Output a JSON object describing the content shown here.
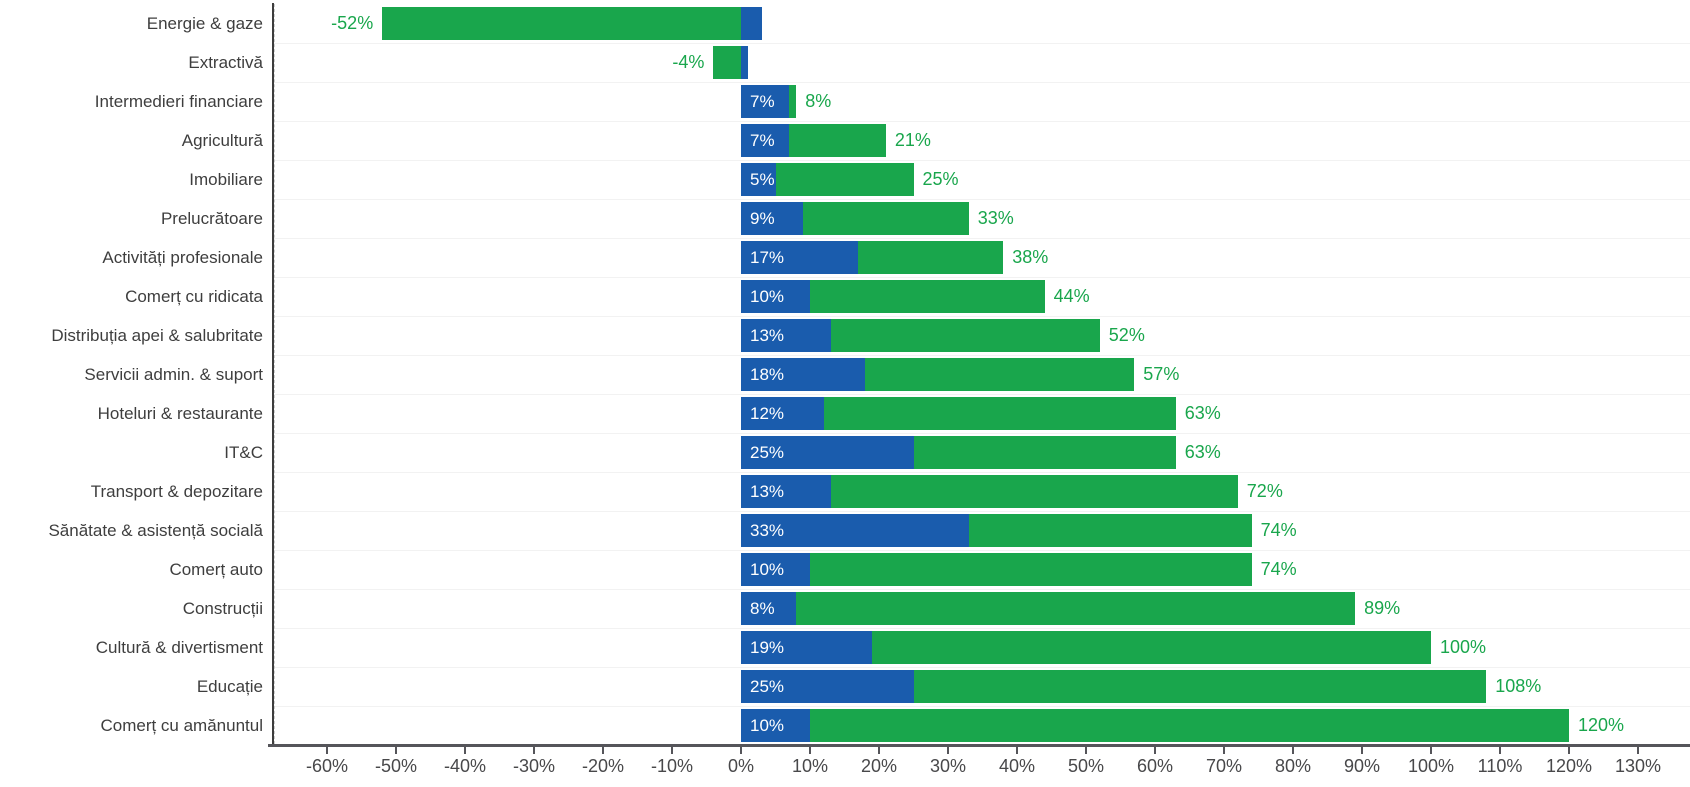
{
  "chart_data": {
    "type": "bar",
    "orientation": "horizontal",
    "stacked": true,
    "title": "",
    "legend": "none",
    "grid": "light horizontal row separators, dashed vertical zero line",
    "categories": [
      "Energie & gaze",
      "Extractivă",
      "Intermedieri financiare",
      "Agricultură",
      "Imobiliare",
      "Prelucrătoare",
      "Activități profesionale",
      "Comerț cu ridicata",
      "Distribuția apei & salubritate",
      "Servicii admin. & suport",
      "Hoteluri & restaurante",
      "IT&C",
      "Transport & depozitare",
      "Sănătate & asistență socială",
      "Comerț auto",
      "Construcții",
      "Cultură & divertisment",
      "Educație",
      "Comerț cu amănuntul"
    ],
    "series": [
      {
        "name": "blue-segment",
        "color": "#1A5CAD",
        "values": [
          3,
          1,
          7,
          7,
          5,
          9,
          17,
          10,
          13,
          18,
          12,
          25,
          13,
          33,
          10,
          8,
          19,
          25,
          10
        ],
        "labels": [
          "",
          "",
          "7%",
          "7%",
          "5%",
          "9%",
          "17%",
          "10%",
          "13%",
          "18%",
          "12%",
          "25%",
          "13%",
          "33%",
          "10%",
          "8%",
          "19%",
          "25%",
          "10%"
        ]
      },
      {
        "name": "green-segment",
        "color": "#19A64C",
        "end_totals": [
          -52,
          -4,
          8,
          21,
          25,
          33,
          38,
          44,
          52,
          57,
          63,
          63,
          72,
          74,
          74,
          89,
          100,
          108,
          120
        ],
        "labels": [
          "-52%",
          "-4%",
          "8%",
          "21%",
          "25%",
          "33%",
          "38%",
          "44%",
          "52%",
          "57%",
          "63%",
          "63%",
          "72%",
          "74%",
          "74%",
          "89%",
          "100%",
          "108%",
          "120%"
        ]
      }
    ],
    "x_axis": {
      "tick_labels": [
        "-60%",
        "-50%",
        "-40%",
        "-30%",
        "-20%",
        "-10%",
        "0%",
        "10%",
        "20%",
        "30%",
        "40%",
        "50%",
        "60%",
        "70%",
        "80%",
        "90%",
        "100%",
        "110%",
        "120%",
        "130%"
      ],
      "tick_values": [
        -60,
        -50,
        -40,
        -30,
        -20,
        -10,
        0,
        10,
        20,
        30,
        40,
        50,
        60,
        70,
        80,
        90,
        100,
        110,
        120,
        130
      ],
      "range": [
        -67.7,
        137.5
      ]
    }
  },
  "colors": {
    "green": "#19A64C",
    "blue": "#1A5CAD",
    "category_text": "#3E3E3E",
    "tick_text": "#48484A",
    "axis_line": "#55555A",
    "grid_line": "#F2F2F2",
    "zero_line": "#CDCDCD",
    "bar_label_text": "#FFFFFF"
  }
}
